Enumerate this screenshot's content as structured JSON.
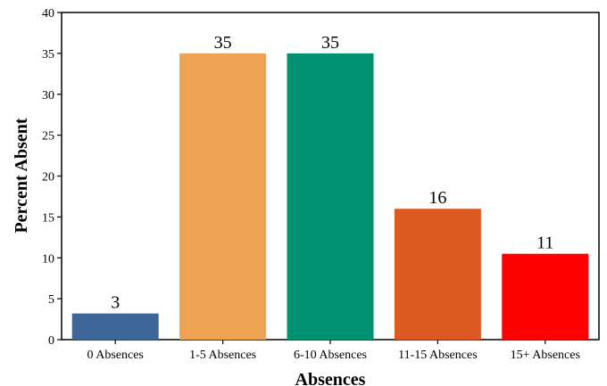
{
  "chart_data": {
    "type": "bar",
    "title": "",
    "xlabel": "Absences",
    "ylabel": "Percent Absent",
    "categories": [
      "0 Absences",
      "1-5 Absences",
      "6-10 Absences",
      "11-15 Absences",
      "15+ Absences"
    ],
    "values": [
      3.2,
      35,
      35,
      16,
      10.5
    ],
    "data_labels": [
      "3",
      "35",
      "35",
      "16",
      "11"
    ],
    "colors": [
      "#3d6699",
      "#eea353",
      "#009270",
      "#dc5a22",
      "#fe0000"
    ],
    "ylim": [
      0,
      40
    ],
    "yticks": [
      0,
      5,
      10,
      15,
      20,
      25,
      30,
      35,
      40
    ],
    "grid": false,
    "legend": "none"
  }
}
